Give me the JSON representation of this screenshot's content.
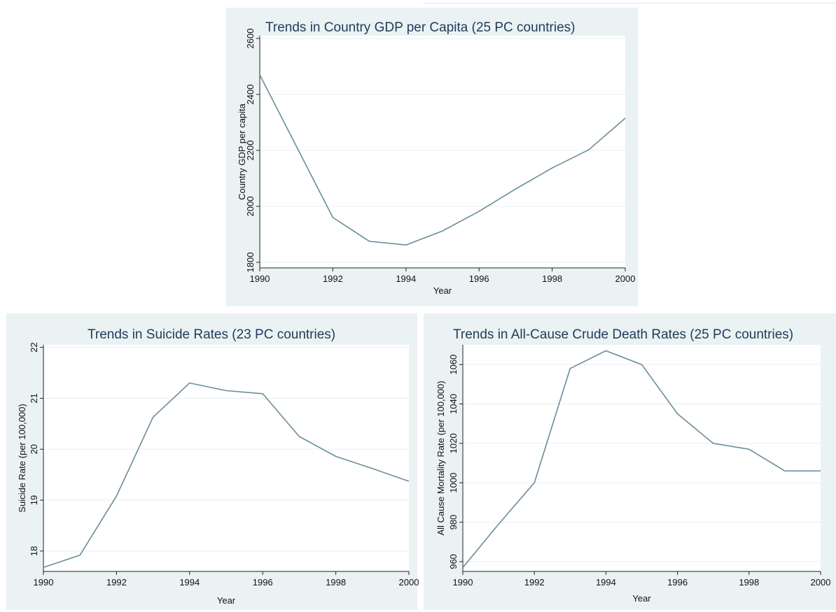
{
  "colors": {
    "panel_bg": "#eaf2f3",
    "plot_bg": "#ffffff",
    "line": "#6b8c99",
    "title": "#1f3b5a",
    "grid": "#e9eef0"
  },
  "chart_data": [
    {
      "type": "line",
      "title": "Trends in Country GDP per Capita (25 PC countries)",
      "xlabel": "Year",
      "ylabel": "Country GDP per capita",
      "x": [
        1990,
        1991,
        1992,
        1993,
        1994,
        1995,
        1996,
        1997,
        1998,
        1999,
        2000
      ],
      "series": [
        {
          "values": [
            2470,
            2215,
            1960,
            1875,
            1862,
            1912,
            1982,
            2062,
            2137,
            2202,
            2315
          ]
        }
      ],
      "xlim": [
        1990,
        2000
      ],
      "ylim": [
        1780,
        2610
      ],
      "xticks": [
        1990,
        1992,
        1994,
        1996,
        1998,
        2000
      ],
      "yticks": [
        1800,
        2000,
        2200,
        2400,
        2600
      ],
      "grid": true,
      "legend": "none"
    },
    {
      "type": "line",
      "title": "Trends in Suicide Rates (23 PC countries)",
      "xlabel": "Year",
      "ylabel": "Suicide Rate (per 100,000)",
      "x": [
        1990,
        1991,
        1992,
        1993,
        1994,
        1995,
        1996,
        1997,
        1998,
        1999,
        2000
      ],
      "series": [
        {
          "values": [
            17.68,
            17.92,
            19.08,
            20.63,
            21.3,
            21.15,
            21.09,
            20.25,
            19.86,
            19.62,
            19.37
          ]
        }
      ],
      "xlim": [
        1990,
        2000
      ],
      "ylim": [
        17.6,
        22.05
      ],
      "xticks": [
        1990,
        1992,
        1994,
        1996,
        1998,
        2000
      ],
      "yticks": [
        18,
        19,
        20,
        21,
        22
      ],
      "grid": true,
      "legend": "none"
    },
    {
      "type": "line",
      "title": "Trends in All-Cause Crude Death Rates (25 PC countries)",
      "xlabel": "Year",
      "ylabel": "All Cause Mortality Rate (per 100,000)",
      "x": [
        1990,
        1991,
        1992,
        1993,
        1994,
        1995,
        1996,
        1997,
        1998,
        1999,
        2000
      ],
      "series": [
        {
          "values": [
            957,
            979,
            1000,
            1058,
            1067,
            1060,
            1035,
            1020,
            1017,
            1006,
            1006
          ]
        }
      ],
      "xlim": [
        1990,
        2000
      ],
      "ylim": [
        955,
        1070
      ],
      "xticks": [
        1990,
        1992,
        1994,
        1996,
        1998,
        2000
      ],
      "yticks": [
        960,
        980,
        1000,
        1020,
        1040,
        1060
      ],
      "grid": true,
      "legend": "none"
    }
  ]
}
